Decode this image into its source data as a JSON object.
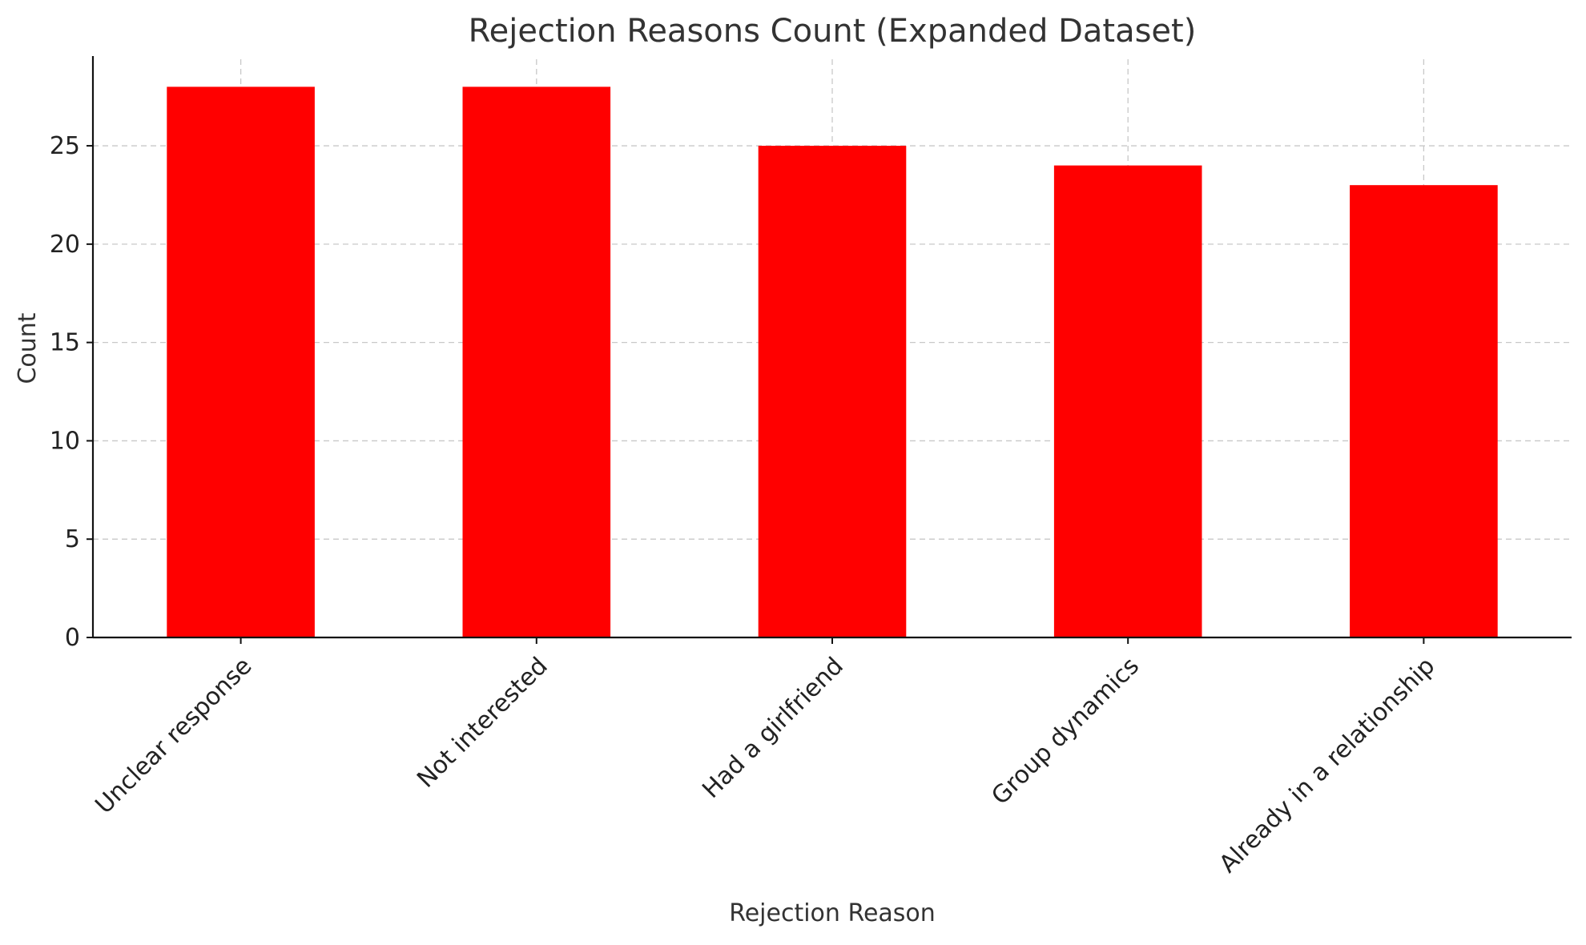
{
  "chart_data": {
    "type": "bar",
    "title": "Rejection Reasons Count (Expanded Dataset)",
    "xlabel": "Rejection Reason",
    "ylabel": "Count",
    "categories": [
      "Unclear response",
      "Not interested",
      "Had a girlfriend",
      "Group dynamics",
      "Already in a relationship"
    ],
    "values": [
      28,
      28,
      25,
      24,
      23
    ],
    "ylim": [
      0,
      29.4
    ],
    "yticks": [
      0,
      5,
      10,
      15,
      20,
      25
    ],
    "grid": true,
    "bar_color": "#ff0000"
  }
}
